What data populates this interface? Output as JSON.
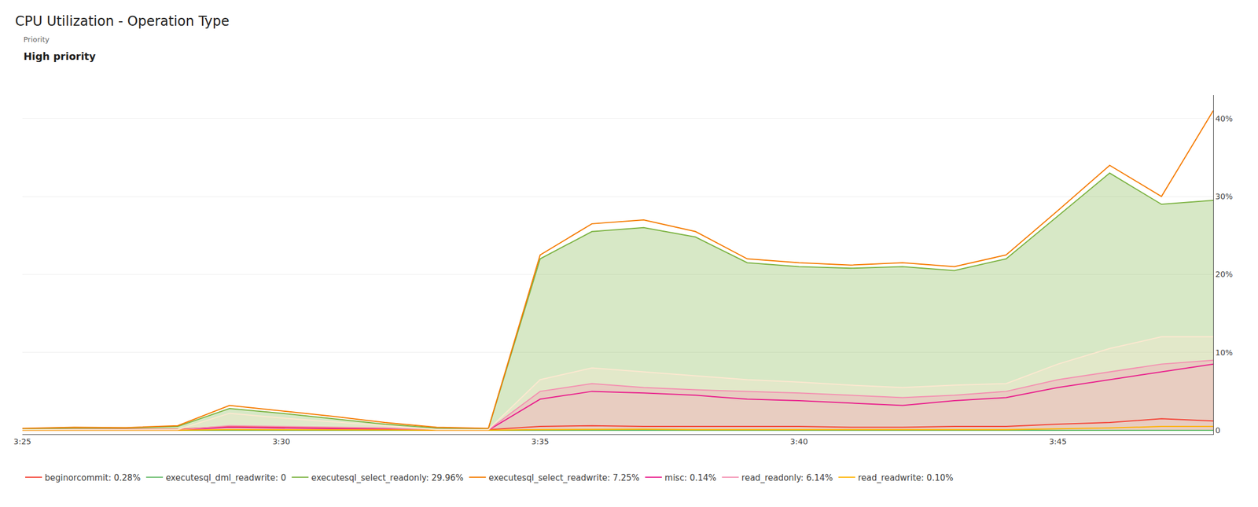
{
  "chart_data": {
    "type": "line",
    "title": "CPU Utilization - Operation Type",
    "annotations": [
      "Priority",
      "High priority"
    ],
    "x": [
      0,
      1,
      2,
      3,
      4,
      5,
      6,
      7,
      8,
      9,
      10,
      11,
      12,
      13,
      14,
      15,
      16,
      17,
      18,
      19,
      20,
      21,
      22,
      23
    ],
    "series": [
      {
        "name": "beginorcommit: 0.28%",
        "color": "#f44336",
        "values": [
          0.1,
          0.12,
          0.12,
          0.15,
          0.5,
          0.4,
          0.3,
          0.2,
          0.1,
          0.1,
          0.5,
          0.6,
          0.5,
          0.5,
          0.5,
          0.5,
          0.4,
          0.4,
          0.5,
          0.5,
          0.8,
          1.0,
          1.5,
          1.2
        ]
      },
      {
        "name": "executesql_dml_readwrite: 0",
        "color": "#66bb6a",
        "values": [
          0.0,
          0.0,
          0.0,
          0.0,
          0.0,
          0.0,
          0.0,
          0.0,
          0.0,
          0.0,
          0.0,
          0.0,
          0.0,
          0.0,
          0.0,
          0.0,
          0.0,
          0.0,
          0.0,
          0.0,
          0.0,
          0.0,
          0.0,
          0.0
        ]
      },
      {
        "name": "executesql_select_readonly: 29.96%",
        "color": "#7cb342",
        "type": "area",
        "values": [
          0.2,
          0.3,
          0.3,
          0.5,
          2.8,
          2.2,
          1.5,
          0.8,
          0.3,
          0.2,
          22.0,
          25.5,
          26.0,
          24.8,
          21.5,
          21.0,
          20.8,
          21.0,
          20.5,
          22.0,
          27.5,
          33.0,
          29.0,
          29.5
        ]
      },
      {
        "name": "executesql_select_readwrite: 7.25%",
        "color": "#f57c00",
        "values": [
          0.25,
          0.4,
          0.35,
          0.6,
          3.2,
          2.5,
          1.8,
          1.0,
          0.4,
          0.25,
          22.5,
          26.5,
          27.0,
          25.5,
          22.0,
          21.5,
          21.2,
          21.5,
          21.0,
          22.5,
          28.2,
          34.0,
          30.0,
          41.0
        ]
      },
      {
        "name": "misc: 0.14%",
        "color": "#e91e8c",
        "values": [
          0.02,
          0.02,
          0.02,
          0.02,
          0.4,
          0.3,
          0.2,
          0.15,
          0.02,
          0.02,
          4.0,
          5.0,
          4.8,
          4.5,
          4.0,
          3.8,
          3.5,
          3.2,
          3.8,
          4.2,
          5.5,
          6.5,
          7.5,
          8.5
        ]
      },
      {
        "name": "read_readonly: 6.14%",
        "color": "#f48fb1",
        "type": "area",
        "values": [
          0.05,
          0.05,
          0.05,
          0.05,
          0.6,
          0.5,
          0.4,
          0.3,
          0.05,
          0.05,
          5.0,
          6.0,
          5.5,
          5.2,
          5.0,
          4.8,
          4.5,
          4.2,
          4.5,
          5.0,
          6.5,
          7.5,
          8.5,
          9.0
        ]
      },
      {
        "name": "read_readwrite: 0.10%",
        "color": "#ffb300",
        "values": [
          0.02,
          0.02,
          0.02,
          0.02,
          0.1,
          0.1,
          0.1,
          0.05,
          0.02,
          0.02,
          0.1,
          0.15,
          0.15,
          0.1,
          0.1,
          0.1,
          0.1,
          0.1,
          0.1,
          0.1,
          0.2,
          0.3,
          0.5,
          0.5
        ]
      },
      {
        "color": "#fde8d0",
        "type": "area",
        "values": [
          0.1,
          0.1,
          0.1,
          0.1,
          2.2,
          1.6,
          1.1,
          0.6,
          0.1,
          0.1,
          6.5,
          8.0,
          7.5,
          7.0,
          6.5,
          6.2,
          5.8,
          5.5,
          5.8,
          6.0,
          8.5,
          10.5,
          12.0,
          12.0
        ]
      }
    ],
    "xlim": [
      0,
      23
    ],
    "xticks": [
      {
        "value": 0,
        "label": "3:25"
      },
      {
        "value": 5,
        "label": "3:30"
      },
      {
        "value": 10,
        "label": "3:35"
      },
      {
        "value": 15,
        "label": "3:40"
      },
      {
        "value": 20,
        "label": "3:45"
      }
    ],
    "ylim": [
      -0.5,
      43
    ],
    "yticks": [
      0,
      {
        "value": 10,
        "label": "10%"
      },
      {
        "value": 20,
        "label": "20%"
      },
      {
        "value": 30,
        "label": "30%"
      },
      {
        "value": 40,
        "label": "40%"
      }
    ],
    "grid": true,
    "legend": "bottom"
  }
}
